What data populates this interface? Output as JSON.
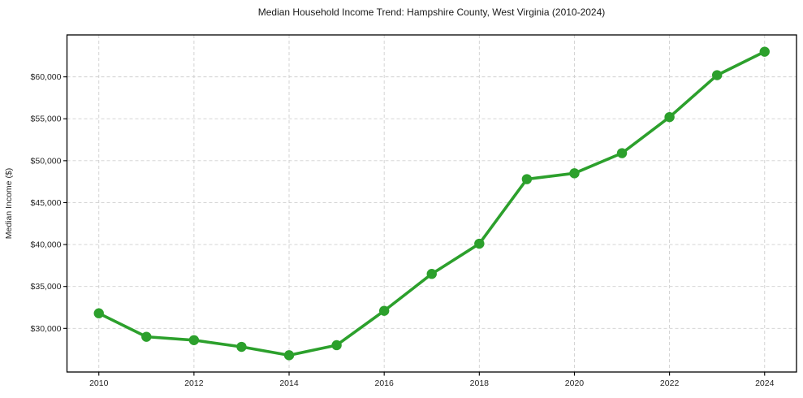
{
  "chart_data": {
    "type": "line",
    "title": "Median Household Income Trend: Hampshire County, West Virginia (2010-2024)",
    "xlabel": "",
    "ylabel": "Median Income ($)",
    "series": [
      {
        "name": "Median household income",
        "x": [
          2010,
          2011,
          2012,
          2013,
          2014,
          2015,
          2016,
          2017,
          2018,
          2019,
          2020,
          2021,
          2022,
          2023,
          2024
        ],
        "values": [
          31800,
          29000,
          28600,
          27800,
          26800,
          28000,
          32100,
          36500,
          40100,
          47800,
          48500,
          50900,
          55200,
          60200,
          63000
        ]
      }
    ],
    "xlim": [
      2009.33,
      2024.67
    ],
    "ylim": [
      24800,
      65000
    ],
    "x_ticks": [
      2010,
      2012,
      2014,
      2016,
      2018,
      2020,
      2022,
      2024
    ],
    "y_ticks": [
      30000,
      35000,
      40000,
      45000,
      50000,
      55000,
      60000
    ],
    "y_tick_prefix": "$",
    "grid": "dashed-both-axes",
    "legend": "none",
    "marker": "circle",
    "colors": {
      "line": "#2ca02c",
      "marker": "#2ca02c",
      "grid": "#cfcfcf",
      "spine": "#000000",
      "tick_label": "#262626",
      "title": "#1a1a1a"
    }
  }
}
